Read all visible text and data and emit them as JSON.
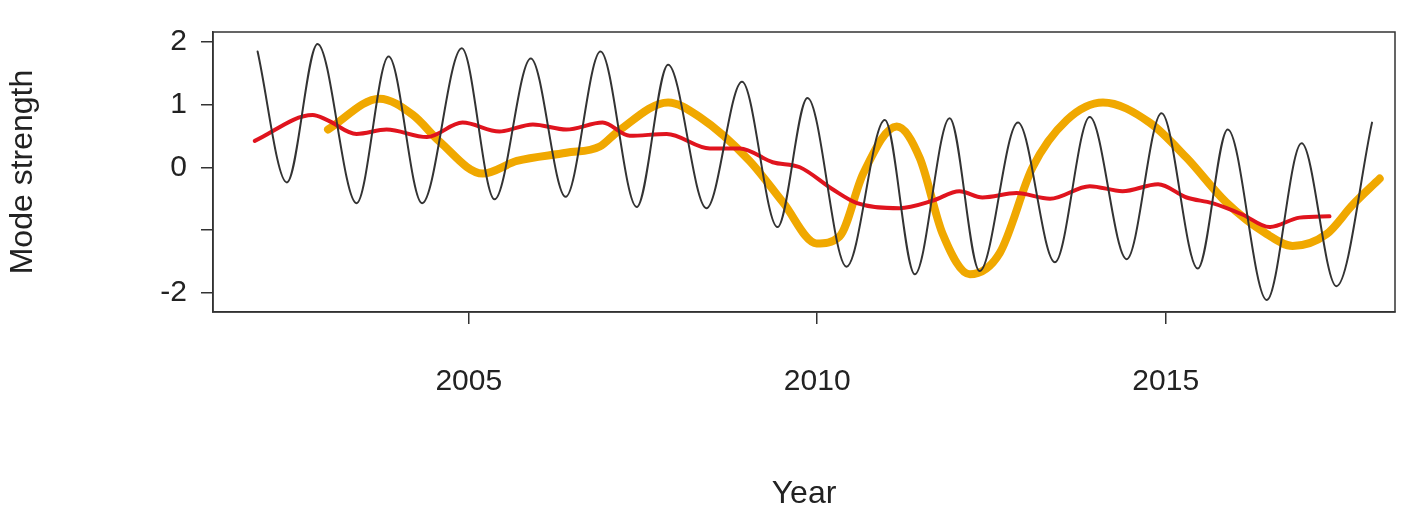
{
  "chart_data": {
    "type": "line",
    "xlabel": "Year",
    "ylabel": "Mode strength",
    "xlim": [
      2001.33,
      2018.29
    ],
    "ylim": [
      -2.3,
      2.15
    ],
    "xticks": [
      2005,
      2010,
      2015
    ],
    "yticks": [
      {
        "value": -2,
        "label": "-2"
      },
      {
        "value": -1,
        "label": null
      },
      0,
      1,
      2
    ],
    "grid": false,
    "legend": false,
    "marker": "none",
    "line_style": "solid",
    "series": [
      {
        "color": "#333333",
        "x": [
          2001.97,
          2002.39,
          2002.83,
          2003.39,
          2003.85,
          2004.33,
          2004.9,
          2005.37,
          2005.89,
          2006.39,
          2006.89,
          2007.41,
          2007.86,
          2008.41,
          2008.92,
          2009.43,
          2009.86,
          2010.42,
          2010.97,
          2011.4,
          2011.9,
          2012.33,
          2012.88,
          2013.41,
          2013.91,
          2014.44,
          2014.94,
          2015.46,
          2015.89,
          2016.45,
          2016.95,
          2017.45,
          2017.96
        ],
        "values": [
          1.84,
          -0.24,
          1.96,
          -0.57,
          1.76,
          -0.57,
          1.89,
          -0.51,
          1.73,
          -0.47,
          1.84,
          -0.63,
          1.63,
          -0.65,
          1.36,
          -0.95,
          1.1,
          -1.58,
          0.75,
          -1.7,
          0.78,
          -1.65,
          0.71,
          -1.51,
          0.8,
          -1.46,
          0.86,
          -1.61,
          0.6,
          -2.11,
          0.38,
          -1.89,
          0.71
        ]
      },
      {
        "color": "#e0141e",
        "x": [
          2001.93,
          2002.76,
          2002.97,
          2003.39,
          2003.82,
          2004.4,
          2004.91,
          2005.44,
          2005.92,
          2006.4,
          2006.92,
          2007.31,
          2007.84,
          2008.46,
          2008.89,
          2009.36,
          2009.75,
          2010.22,
          2010.57,
          2011.18,
          2011.66,
          2012.04,
          2012.37,
          2012.86,
          2013.34,
          2013.91,
          2014.38,
          2014.89,
          2015.3,
          2015.67,
          2016.1,
          2016.49,
          2016.92,
          2017.35
        ],
        "values": [
          0.42,
          0.83,
          0.75,
          0.53,
          0.6,
          0.48,
          0.71,
          0.57,
          0.68,
          0.6,
          0.71,
          0.5,
          0.53,
          0.3,
          0.3,
          0.08,
          0,
          -0.35,
          -0.57,
          -0.65,
          -0.53,
          -0.38,
          -0.48,
          -0.41,
          -0.5,
          -0.3,
          -0.38,
          -0.27,
          -0.48,
          -0.57,
          -0.75,
          -0.95,
          -0.8,
          -0.78
        ]
      },
      {
        "color": "#f0a800",
        "x": [
          2002.98,
          2003.72,
          2004.2,
          2004.58,
          2005.2,
          2005.69,
          2006.4,
          2006.88,
          2007.14,
          2007.86,
          2008.31,
          2009.03,
          2009.51,
          2009.99,
          2010.32,
          2010.66,
          2011.14,
          2011.47,
          2011.8,
          2012.19,
          2012.62,
          2013.09,
          2013.58,
          2014.1,
          2014.77,
          2015.3,
          2015.87,
          2016.45,
          2016.82,
          2017.31,
          2017.68,
          2018.07
        ],
        "values": [
          0.6,
          1.09,
          0.83,
          0.41,
          -0.1,
          0.1,
          0.23,
          0.33,
          0.57,
          1.03,
          0.8,
          0.1,
          -0.56,
          -1.21,
          -1.1,
          -0.1,
          0.65,
          0.15,
          -1.06,
          -1.7,
          -1.36,
          0,
          0.75,
          1.03,
          0.71,
          0.15,
          -0.56,
          -1.06,
          -1.25,
          -1.06,
          -0.6,
          -0.18
        ]
      }
    ]
  }
}
